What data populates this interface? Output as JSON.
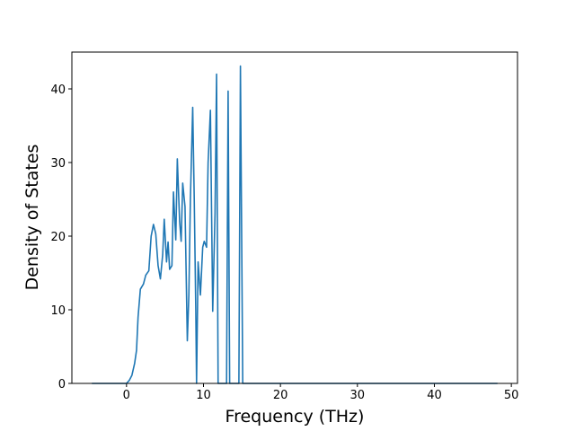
{
  "chart_data": {
    "type": "line",
    "x_label": "Frequency (THz)",
    "y_label": "Density of States",
    "xlim": [
      -7.1,
      50.8
    ],
    "ylim": [
      0,
      45
    ],
    "xticks": [
      0,
      10,
      20,
      30,
      40,
      50
    ],
    "yticks": [
      0,
      10,
      20,
      30,
      40
    ],
    "x": [
      -4.5,
      0,
      0.35,
      0.7,
      1.05,
      1.3,
      1.5,
      1.8,
      2.2,
      2.5,
      2.9,
      3.2,
      3.5,
      3.8,
      4.1,
      4.4,
      4.7,
      4.9,
      5.2,
      5.4,
      5.6,
      5.9,
      6.1,
      6.4,
      6.6,
      6.9,
      7.1,
      7.3,
      7.6,
      7.9,
      8.1,
      8.3,
      8.6,
      8.8,
      9.0,
      9.1,
      9.3,
      9.6,
      9.9,
      10.1,
      10.4,
      10.6,
      10.9,
      11.2,
      11.5,
      11.7,
      11.9,
      13.0,
      13.2,
      13.4,
      14.6,
      14.8,
      15.1,
      48.2
    ],
    "series": [
      {
        "color": "#1f77b4",
        "values": [
          0,
          0,
          0.4,
          1.1,
          2.7,
          4.5,
          9,
          12.8,
          13.5,
          14.7,
          15.3,
          20,
          21.6,
          20.3,
          16,
          14.2,
          17.5,
          22.3,
          16.5,
          19.2,
          15.5,
          16,
          26,
          19.5,
          30.5,
          22,
          19.3,
          27.2,
          24,
          5.8,
          12,
          25,
          37.5,
          25,
          10,
          0,
          16.5,
          12,
          18.5,
          19.3,
          18.5,
          30,
          37.1,
          9.8,
          23,
          42,
          0,
          0,
          39.7,
          0,
          0,
          43.1,
          0,
          0
        ]
      }
    ]
  }
}
